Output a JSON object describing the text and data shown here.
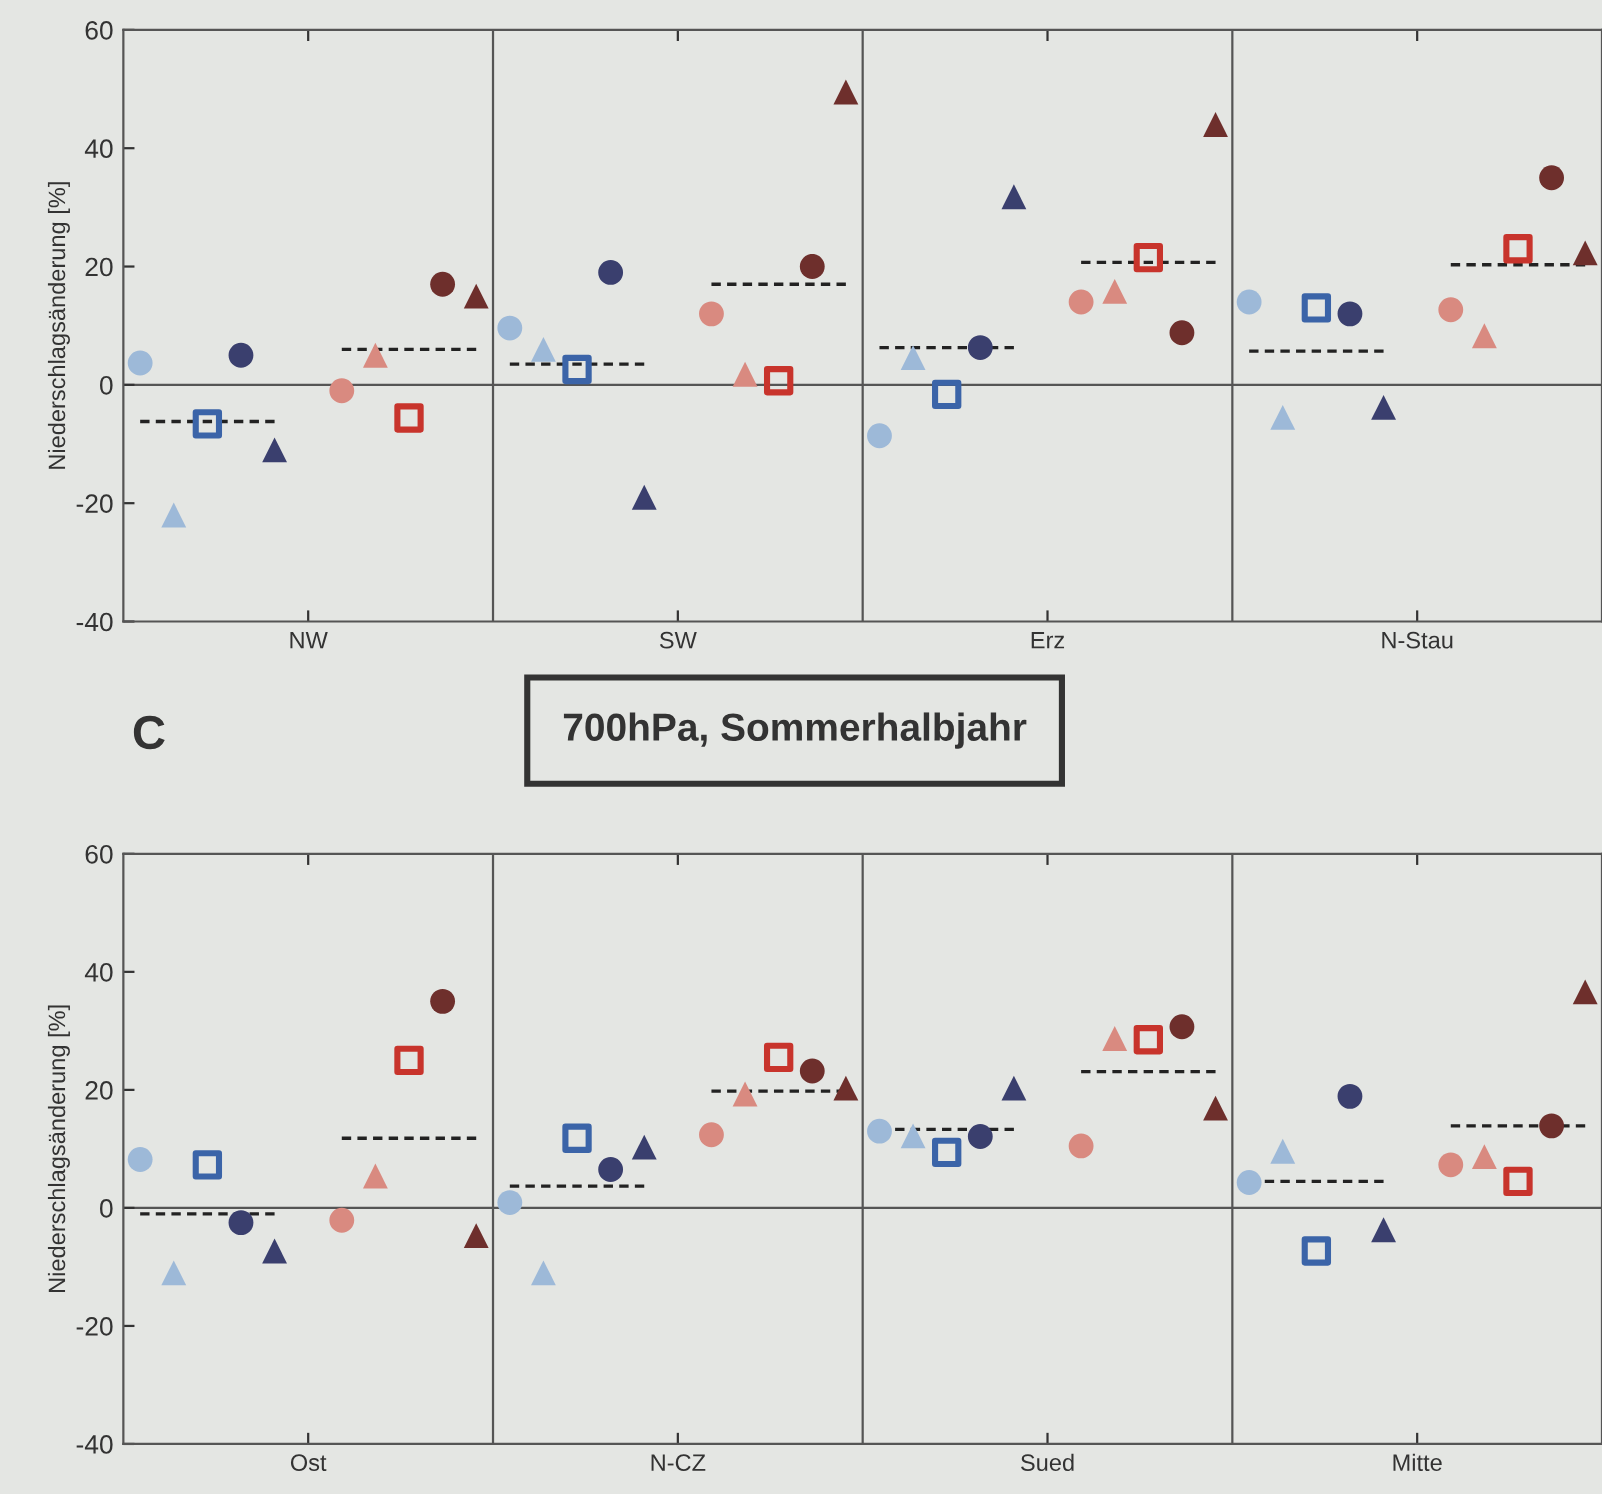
{
  "chart_data": [
    {
      "type": "scatter",
      "ylabel": "Niederschlagsänderung [%]",
      "ylim": [
        -40,
        60
      ],
      "yticks": [
        -40,
        -20,
        0,
        20,
        40,
        60
      ],
      "categories": [
        null,
        null,
        null,
        null,
        null,
        "NW",
        null,
        null,
        null,
        null,
        null,
        null,
        null,
        null,
        null,
        null,
        "SW",
        null,
        null,
        null,
        null,
        null,
        null,
        null,
        null,
        null,
        null,
        "Erz",
        null,
        null,
        null,
        null,
        null,
        null,
        null,
        null,
        null,
        null,
        "N-Stau",
        null,
        null,
        null,
        null,
        null
      ],
      "ref_lines": [
        {
          "axis": "y",
          "value": 0
        }
      ],
      "series": [
        {
          "marker": "circle",
          "values": [
            3.7,
            null,
            null,
            5,
            null,
            null,
            -1,
            null,
            null,
            17,
            null,
            9.6,
            null,
            null,
            19,
            null,
            null,
            12,
            null,
            null,
            20,
            null,
            -8.6,
            null,
            null,
            6.3,
            null,
            null,
            14,
            null,
            null,
            8.8,
            null,
            14,
            null,
            null,
            12,
            null,
            null,
            12.7,
            null,
            null,
            35,
            null
          ],
          "colors": [
            "#9db9d8",
            null,
            null,
            "#3a3f6e",
            null,
            null,
            "#d98a80",
            null,
            null,
            "#6e2f2c",
            null,
            "#9db9d8",
            null,
            null,
            "#3a3f6e",
            null,
            null,
            "#d98a80",
            null,
            null,
            "#6e2f2c",
            null,
            "#9db9d8",
            null,
            null,
            "#3a3f6e",
            null,
            null,
            "#d98a80",
            null,
            null,
            "#6e2f2c",
            null,
            "#9db9d8",
            null,
            null,
            "#3a3f6e",
            null,
            null,
            "#d98a80",
            null,
            null,
            "#6e2f2c",
            null
          ]
        },
        {
          "marker": "triangle",
          "values": [
            null,
            -22,
            null,
            null,
            -11,
            null,
            null,
            5,
            null,
            null,
            15,
            null,
            6,
            null,
            null,
            -19,
            null,
            null,
            1.8,
            null,
            null,
            49.5,
            null,
            4.6,
            null,
            null,
            31.8,
            null,
            null,
            15.8,
            null,
            null,
            44,
            null,
            -5.5,
            null,
            null,
            -3.8,
            null,
            null,
            8.3,
            null,
            null,
            22.3
          ],
          "colors": [
            null,
            "#9db9d8",
            null,
            null,
            "#3a3f6e",
            null,
            null,
            "#d98a80",
            null,
            null,
            "#6e2f2c",
            null,
            "#9db9d8",
            null,
            null,
            "#3a3f6e",
            null,
            null,
            "#d98a80",
            null,
            null,
            "#6e2f2c",
            null,
            "#9db9d8",
            null,
            null,
            "#3a3f6e",
            null,
            null,
            "#d98a80",
            null,
            null,
            "#6e2f2c",
            null,
            "#9db9d8",
            null,
            null,
            "#3a3f6e",
            null,
            null,
            "#d98a80",
            null,
            null,
            "#6e2f2c"
          ]
        },
        {
          "marker": "square",
          "values": [
            null,
            null,
            -6.6,
            null,
            null,
            null,
            null,
            null,
            -5.6,
            null,
            null,
            null,
            null,
            2.6,
            null,
            null,
            null,
            null,
            null,
            0.7,
            null,
            null,
            null,
            null,
            -1.6,
            null,
            null,
            null,
            null,
            null,
            21.5,
            null,
            null,
            null,
            null,
            13,
            null,
            null,
            null,
            null,
            null,
            23,
            null,
            null
          ],
          "colors": [
            null,
            null,
            "#3b64a8",
            null,
            null,
            null,
            null,
            null,
            "#c8342c",
            null,
            null,
            null,
            null,
            "#3b64a8",
            null,
            null,
            null,
            null,
            null,
            "#c8342c",
            null,
            null,
            null,
            null,
            "#3b64a8",
            null,
            null,
            null,
            null,
            null,
            "#c8342c",
            null,
            null,
            null,
            null,
            "#3b64a8",
            null,
            null,
            null,
            null,
            null,
            "#c8342c",
            null,
            null
          ]
        },
        {
          "type": "line",
          "line_style": "dashed",
          "color": "#222222",
          "values": [
            -6.2,
            -6.2,
            -6.2,
            -6.2,
            -6.2,
            null,
            null,
            null,
            null,
            null,
            null,
            3.5,
            3.5,
            3.5,
            3.5,
            3.5,
            null,
            null,
            null,
            null,
            null,
            null,
            6.3,
            6.3,
            6.3,
            6.3,
            6.3,
            null,
            null,
            null,
            null,
            null,
            null,
            5.7,
            5.7,
            5.7,
            5.7,
            5.7,
            null,
            null,
            null,
            null,
            null,
            null
          ]
        },
        {
          "type": "line",
          "line_style": "dashed",
          "color": "#222222",
          "values": [
            null,
            null,
            null,
            null,
            null,
            null,
            6,
            6,
            6,
            6,
            6,
            null,
            null,
            null,
            null,
            null,
            null,
            17,
            17,
            17,
            17,
            17,
            null,
            null,
            null,
            null,
            null,
            null,
            20.7,
            20.7,
            20.7,
            20.7,
            20.7,
            null,
            null,
            null,
            null,
            null,
            null,
            20.3,
            20.3,
            20.3,
            20.3,
            20.3
          ]
        }
      ]
    },
    {
      "type": "scatter",
      "title": "700hPa, Sommerhalbjahr",
      "annotations": [
        "C"
      ],
      "ylabel": "Niederschlagsänderung [%]",
      "ylim": [
        -40,
        60
      ],
      "yticks": [
        -40,
        -20,
        0,
        20,
        40,
        60
      ],
      "categories": [
        null,
        null,
        null,
        null,
        null,
        "Ost",
        null,
        null,
        null,
        null,
        null,
        null,
        null,
        null,
        null,
        null,
        "N-CZ",
        null,
        null,
        null,
        null,
        null,
        null,
        null,
        null,
        null,
        null,
        "Sued",
        null,
        null,
        null,
        null,
        null,
        null,
        null,
        null,
        null,
        null,
        "Mitte",
        null,
        null,
        null,
        null,
        null
      ],
      "ref_lines": [
        {
          "axis": "y",
          "value": 0
        }
      ],
      "series": [
        {
          "marker": "circle",
          "values": [
            8.2,
            null,
            null,
            -2.5,
            null,
            null,
            -2.1,
            null,
            null,
            35,
            null,
            0.9,
            null,
            null,
            6.5,
            null,
            null,
            12.4,
            null,
            null,
            23.2,
            null,
            13,
            null,
            null,
            12.1,
            null,
            null,
            10.5,
            null,
            null,
            30.7,
            null,
            4.3,
            null,
            null,
            18.9,
            null,
            null,
            7.3,
            null,
            null,
            13.9,
            null
          ],
          "colors": [
            "#9db9d8",
            null,
            null,
            "#3a3f6e",
            null,
            null,
            "#d98a80",
            null,
            null,
            "#6e2f2c",
            null,
            "#9db9d8",
            null,
            null,
            "#3a3f6e",
            null,
            null,
            "#d98a80",
            null,
            null,
            "#6e2f2c",
            null,
            "#9db9d8",
            null,
            null,
            "#3a3f6e",
            null,
            null,
            "#d98a80",
            null,
            null,
            "#6e2f2c",
            null,
            "#9db9d8",
            null,
            null,
            "#3a3f6e",
            null,
            null,
            "#d98a80",
            null,
            null,
            "#6e2f2c",
            null
          ]
        },
        {
          "marker": "triangle",
          "values": [
            null,
            -11,
            null,
            null,
            -7.3,
            null,
            null,
            5.4,
            null,
            null,
            -4.7,
            null,
            -11,
            null,
            null,
            10.3,
            null,
            null,
            19.3,
            null,
            null,
            20.3,
            null,
            12.2,
            null,
            null,
            20.3,
            null,
            null,
            28.7,
            null,
            null,
            16.9,
            null,
            9.6,
            null,
            null,
            -3.7,
            null,
            null,
            8.7,
            null,
            null,
            36.6
          ],
          "colors": [
            null,
            "#9db9d8",
            null,
            null,
            "#3a3f6e",
            null,
            null,
            "#d98a80",
            null,
            null,
            "#6e2f2c",
            null,
            "#9db9d8",
            null,
            null,
            "#3a3f6e",
            null,
            null,
            "#d98a80",
            null,
            null,
            "#6e2f2c",
            null,
            "#9db9d8",
            null,
            null,
            "#3a3f6e",
            null,
            null,
            "#d98a80",
            null,
            null,
            "#6e2f2c",
            null,
            "#9db9d8",
            null,
            null,
            "#3a3f6e",
            null,
            null,
            "#d98a80",
            null,
            null,
            "#6e2f2c"
          ]
        },
        {
          "marker": "square",
          "values": [
            null,
            null,
            7.3,
            null,
            null,
            null,
            null,
            null,
            25,
            null,
            null,
            null,
            null,
            11.8,
            null,
            null,
            null,
            null,
            null,
            25.5,
            null,
            null,
            null,
            null,
            9.4,
            null,
            null,
            null,
            null,
            null,
            28.5,
            null,
            null,
            null,
            null,
            -7.3,
            null,
            null,
            null,
            null,
            null,
            4.5,
            null,
            null
          ],
          "colors": [
            null,
            null,
            "#3b64a8",
            null,
            null,
            null,
            null,
            null,
            "#c8342c",
            null,
            null,
            null,
            null,
            "#3b64a8",
            null,
            null,
            null,
            null,
            null,
            "#c8342c",
            null,
            null,
            null,
            null,
            "#3b64a8",
            null,
            null,
            null,
            null,
            null,
            "#c8342c",
            null,
            null,
            null,
            null,
            "#3b64a8",
            null,
            null,
            null,
            null,
            null,
            "#c8342c",
            null,
            null
          ]
        },
        {
          "type": "line",
          "line_style": "dashed",
          "color": "#222222",
          "values": [
            -1,
            -1,
            -1,
            -1,
            -1,
            null,
            null,
            null,
            null,
            null,
            null,
            3.7,
            3.7,
            3.7,
            3.7,
            3.7,
            null,
            null,
            null,
            null,
            null,
            null,
            13.3,
            13.3,
            13.3,
            13.3,
            13.3,
            null,
            null,
            null,
            null,
            null,
            null,
            4.5,
            4.5,
            4.5,
            4.5,
            4.5,
            null,
            null,
            null,
            null,
            null,
            null
          ]
        },
        {
          "type": "line",
          "line_style": "dashed",
          "color": "#222222",
          "values": [
            null,
            null,
            null,
            null,
            null,
            null,
            11.8,
            11.8,
            11.8,
            11.8,
            11.8,
            null,
            null,
            null,
            null,
            null,
            null,
            19.8,
            19.8,
            19.8,
            19.8,
            19.8,
            null,
            null,
            null,
            null,
            null,
            null,
            23.1,
            23.1,
            23.1,
            23.1,
            23.1,
            null,
            null,
            null,
            null,
            null,
            null,
            13.9,
            13.9,
            13.9,
            13.9,
            13.9
          ]
        }
      ]
    }
  ]
}
